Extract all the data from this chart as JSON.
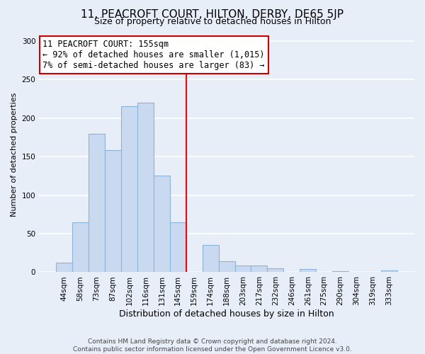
{
  "title": "11, PEACROFT COURT, HILTON, DERBY, DE65 5JP",
  "subtitle": "Size of property relative to detached houses in Hilton",
  "xlabel": "Distribution of detached houses by size in Hilton",
  "ylabel": "Number of detached properties",
  "bar_labels": [
    "44sqm",
    "58sqm",
    "73sqm",
    "87sqm",
    "102sqm",
    "116sqm",
    "131sqm",
    "145sqm",
    "159sqm",
    "174sqm",
    "188sqm",
    "203sqm",
    "217sqm",
    "232sqm",
    "246sqm",
    "261sqm",
    "275sqm",
    "290sqm",
    "304sqm",
    "319sqm",
    "333sqm"
  ],
  "bar_values": [
    12,
    65,
    180,
    158,
    215,
    220,
    125,
    65,
    0,
    35,
    14,
    9,
    9,
    5,
    0,
    4,
    0,
    1,
    0,
    0,
    2
  ],
  "bar_color": "#c9d9f0",
  "bar_edge_color": "#8cb4d8",
  "vline_pos": 8,
  "vline_color": "red",
  "ylim": [
    0,
    305
  ],
  "yticks": [
    0,
    50,
    100,
    150,
    200,
    250,
    300
  ],
  "annotation_title": "11 PEACROFT COURT: 155sqm",
  "annotation_line1": "← 92% of detached houses are smaller (1,015)",
  "annotation_line2": "7% of semi-detached houses are larger (83) →",
  "annotation_box_facecolor": "#ffffff",
  "annotation_box_edgecolor": "#cc0000",
  "footer1": "Contains HM Land Registry data © Crown copyright and database right 2024.",
  "footer2": "Contains public sector information licensed under the Open Government Licence v3.0.",
  "background_color": "#e8eef8",
  "grid_color": "#ffffff",
  "title_fontsize": 11,
  "subtitle_fontsize": 9,
  "ylabel_fontsize": 8,
  "xlabel_fontsize": 9,
  "tick_fontsize": 7.5,
  "footer_fontsize": 6.5
}
